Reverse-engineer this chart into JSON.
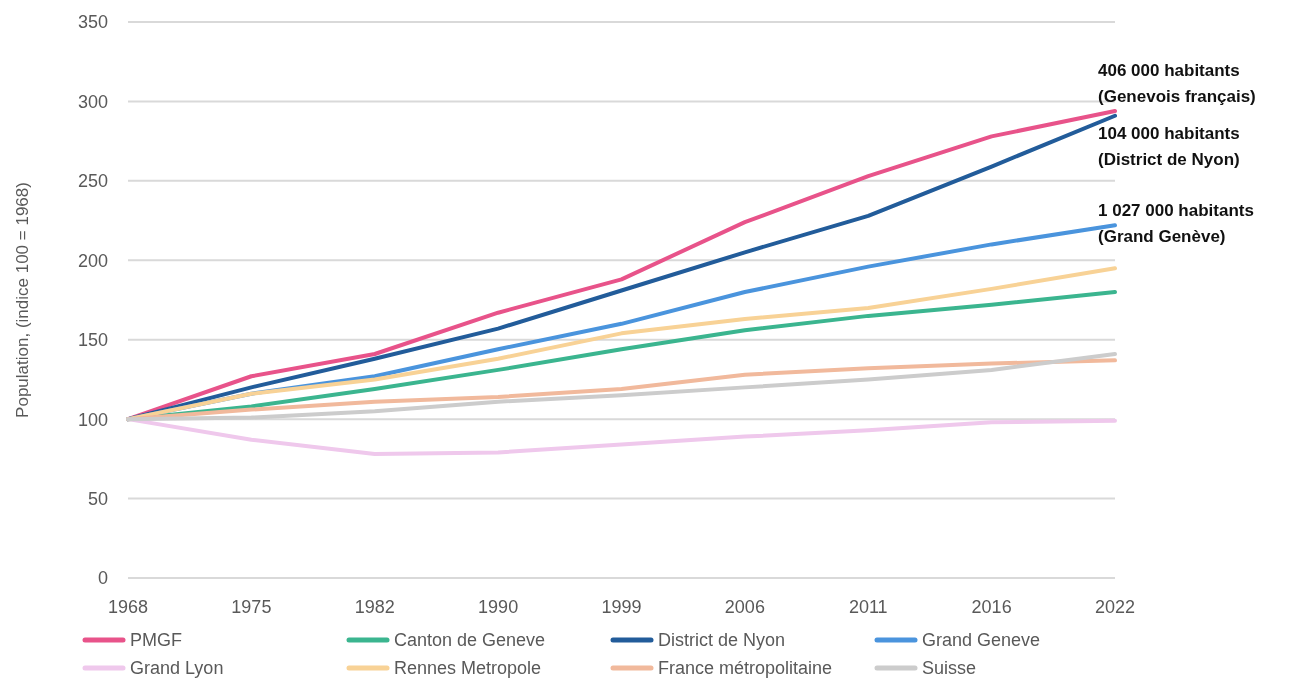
{
  "chart_data": {
    "type": "line",
    "ylabel": "Population, (indice 100 = 1968)",
    "categories": [
      "1968",
      "1975",
      "1982",
      "1990",
      "1999",
      "2006",
      "2011",
      "2016",
      "2022"
    ],
    "series": [
      {
        "name": "PMGF",
        "color": "#e8538a",
        "values": [
          100,
          127,
          141,
          167,
          188,
          224,
          253,
          278,
          294
        ]
      },
      {
        "name": "Canton de Geneve",
        "color": "#3bb58f",
        "values": [
          100,
          108,
          119,
          131,
          144,
          156,
          165,
          172,
          180
        ]
      },
      {
        "name": "District de Nyon",
        "color": "#225c9a",
        "values": [
          100,
          120,
          138,
          157,
          181,
          205,
          228,
          259,
          291
        ]
      },
      {
        "name": "Grand Geneve",
        "color": "#4a94dd",
        "values": [
          100,
          116,
          127,
          144,
          160,
          180,
          196,
          210,
          222
        ]
      },
      {
        "name": "Grand Lyon",
        "color": "#efc8ec",
        "values": [
          100,
          87,
          78,
          79,
          84,
          89,
          93,
          98,
          99
        ]
      },
      {
        "name": "Rennes Metropole",
        "color": "#f8d296",
        "values": [
          100,
          116,
          125,
          138,
          154,
          163,
          170,
          182,
          195
        ]
      },
      {
        "name": "France métropolitaine",
        "color": "#f1b99c",
        "values": [
          100,
          106,
          111,
          114,
          119,
          128,
          132,
          135,
          137
        ]
      },
      {
        "name": "Suisse",
        "color": "#cccccc",
        "values": [
          100,
          101,
          105,
          111,
          115,
          120,
          125,
          131,
          141
        ]
      }
    ],
    "ylim": [
      0,
      350
    ],
    "yticks": [
      0,
      50,
      100,
      150,
      200,
      250,
      300,
      350
    ],
    "grid": "y",
    "legend": "bottom",
    "marker": "none",
    "line_style": "solid",
    "annotations": [
      "406 000 habitants\n(Genevois français)",
      "104 000 habitants\n(District de Nyon)",
      "1 027 000 habitants\n(Grand Genève)"
    ]
  }
}
